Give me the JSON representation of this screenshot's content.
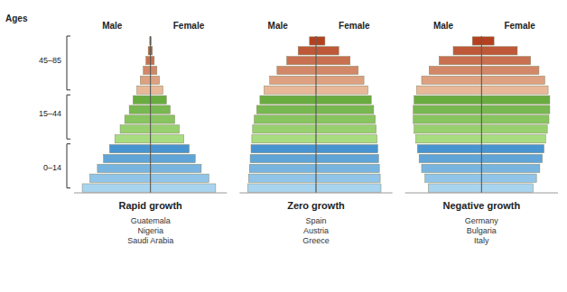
{
  "chart_data": [
    {
      "type": "bar",
      "orientation": "horizontal",
      "title": "Rapid growth",
      "subtitle": "Guatemala\nNigeria\nSaudi Arabia",
      "ylabel": "Ages",
      "categories": [
        null,
        null,
        null,
        null,
        null,
        null,
        null,
        null,
        null,
        null,
        null,
        null,
        null,
        null,
        null,
        null
      ],
      "colors": [
        "#A8D4F0",
        "#90C4E8",
        "#78B4E0",
        "#60A4D8",
        "#4894D0",
        "#A8DC80",
        "#98D070",
        "#88C460",
        "#78B850",
        "#68AC40",
        "#E8B898",
        "#DDA080",
        "#D28868",
        "#C87050",
        "#BE5838",
        "#B44020"
      ],
      "series": [
        {
          "name": "Male",
          "values": [
            -9.0,
            -8.0,
            -7.0,
            -6.2,
            -5.4,
            -4.7,
            -4.0,
            -3.4,
            -2.8,
            -2.3,
            -1.8,
            -1.35,
            -0.95,
            -0.6,
            -0.3,
            -0.1
          ]
        },
        {
          "name": "Female",
          "values": [
            8.6,
            7.7,
            6.7,
            5.9,
            5.1,
            4.4,
            3.8,
            3.2,
            2.6,
            2.1,
            1.65,
            1.2,
            0.85,
            0.5,
            0.25,
            0.08
          ]
        }
      ],
      "xlim": [
        -10.08,
        10.08
      ],
      "xticks": [
        0
      ],
      "grid": true,
      "tick_labels": false,
      "annotations": [
        {
          "text": "0–14",
          "y": 2.0,
          "span": [
            0.0,
            4.5
          ]
        },
        {
          "text": "15–44",
          "y": 7.5,
          "span": [
            5.0,
            9.5
          ]
        },
        {
          "text": "45–85",
          "y": 13.0,
          "span": [
            10.0,
            15.5
          ]
        }
      ]
    },
    {
      "type": "bar",
      "orientation": "horizontal",
      "title": "Zero growth",
      "subtitle": "Spain\nAustria\nGreece",
      "categories": [
        null,
        null,
        null,
        null,
        null,
        null,
        null,
        null,
        null,
        null,
        null,
        null,
        null,
        null,
        null,
        null
      ],
      "colors": [
        "#A8D4F0",
        "#90C4E8",
        "#78B4E0",
        "#60A4D8",
        "#4894D0",
        "#A8DC80",
        "#98D070",
        "#88C460",
        "#78B850",
        "#68AC40",
        "#E8B898",
        "#DDA080",
        "#D28868",
        "#C87050",
        "#BE5838",
        "#B44020"
      ],
      "series": [
        {
          "name": "Male",
          "values": [
            -4.2,
            -4.15,
            -4.1,
            -4.05,
            -4.0,
            -3.95,
            -3.9,
            -3.8,
            -3.65,
            -3.45,
            -3.2,
            -2.85,
            -2.4,
            -1.8,
            -1.1,
            -0.4
          ]
        },
        {
          "name": "Female",
          "values": [
            4.0,
            3.95,
            3.9,
            3.85,
            3.8,
            3.75,
            3.7,
            3.65,
            3.55,
            3.4,
            3.2,
            2.95,
            2.6,
            2.1,
            1.4,
            0.55
          ]
        }
      ],
      "xlim": [
        -4.704,
        4.704
      ],
      "xticks": [
        0
      ],
      "grid": true,
      "tick_labels": false
    },
    {
      "type": "bar",
      "orientation": "horizontal",
      "title": "Negative growth",
      "subtitle": "Germany\nBulgaria\nItaly",
      "categories": [
        null,
        null,
        null,
        null,
        null,
        null,
        null,
        null,
        null,
        null,
        null,
        null,
        null,
        null,
        null,
        null
      ],
      "colors": [
        "#A8D4F0",
        "#90C4E8",
        "#78B4E0",
        "#60A4D8",
        "#4894D0",
        "#A8DC80",
        "#98D070",
        "#88C460",
        "#78B850",
        "#68AC40",
        "#E8B898",
        "#DDA080",
        "#D28868",
        "#C87050",
        "#BE5838",
        "#B44020"
      ],
      "series": [
        {
          "name": "Male",
          "values": [
            -3.2,
            -3.4,
            -3.6,
            -3.75,
            -3.85,
            -3.95,
            -4.05,
            -4.1,
            -4.1,
            -4.05,
            -3.9,
            -3.6,
            -3.15,
            -2.55,
            -1.7,
            -0.55
          ]
        },
        {
          "name": "Female",
          "values": [
            3.1,
            3.3,
            3.5,
            3.65,
            3.75,
            3.85,
            3.95,
            4.05,
            4.1,
            4.1,
            4.0,
            3.8,
            3.45,
            2.95,
            2.15,
            0.75
          ]
        }
      ],
      "xlim": [
        -4.592,
        4.592
      ],
      "xticks": [
        0
      ],
      "grid": true,
      "tick_labels": false
    }
  ]
}
